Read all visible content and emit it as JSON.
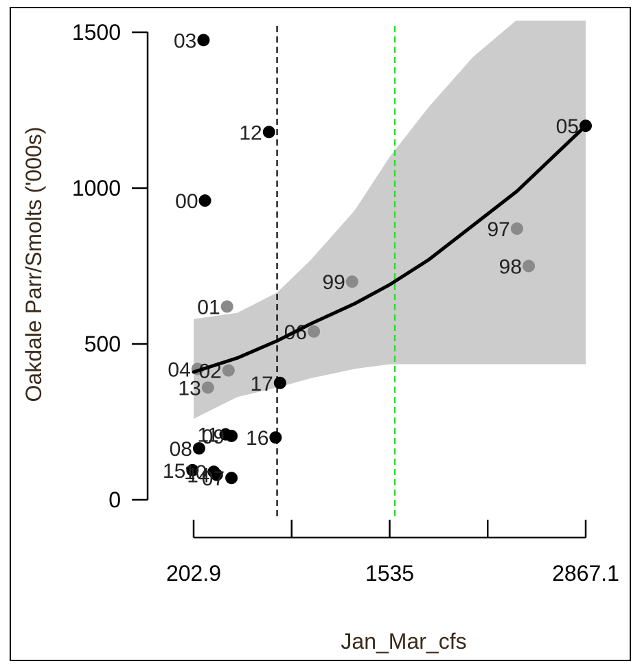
{
  "chart_data": {
    "type": "scatter",
    "title": "",
    "xlabel": "Jan_Mar_cfs",
    "ylabel": "Oakdale Parr/Smolts ('000s)",
    "xlim": [
      140,
      2900
    ],
    "ylim": [
      -60,
      1540
    ],
    "x_ticks": [
      202.9,
      869,
      1535,
      2201,
      2867.1
    ],
    "x_tick_labels": [
      "202.9",
      "",
      "1535",
      "",
      "2867.1"
    ],
    "y_ticks": [
      0,
      500,
      1000,
      1500
    ],
    "y_tick_labels": [
      "0",
      "500",
      "1000",
      "1500"
    ],
    "grid": false,
    "vlines": [
      {
        "x": 770,
        "color": "#000000",
        "style": "dashed"
      },
      {
        "x": 1570,
        "color": "#22dd22",
        "style": "dashed"
      }
    ],
    "fit_curve": [
      {
        "x": 202.9,
        "y": 410,
        "lo": 260,
        "hi": 580
      },
      {
        "x": 500,
        "y": 455,
        "lo": 330,
        "hi": 600
      },
      {
        "x": 770,
        "y": 510,
        "lo": 360,
        "hi": 665
      },
      {
        "x": 1000,
        "y": 565,
        "lo": 390,
        "hi": 770
      },
      {
        "x": 1300,
        "y": 630,
        "lo": 420,
        "hi": 930
      },
      {
        "x": 1535,
        "y": 690,
        "lo": 435,
        "hi": 1100
      },
      {
        "x": 1800,
        "y": 770,
        "lo": 435,
        "hi": 1260
      },
      {
        "x": 2100,
        "y": 880,
        "lo": 435,
        "hi": 1420
      },
      {
        "x": 2400,
        "y": 990,
        "lo": 435,
        "hi": 1540
      },
      {
        "x": 2867.1,
        "y": 1200,
        "lo": 435,
        "hi": 1540
      }
    ],
    "points": [
      {
        "label": "03",
        "x": 270,
        "y": 1475,
        "color": "#000000"
      },
      {
        "label": "12",
        "x": 715,
        "y": 1180,
        "color": "#000000"
      },
      {
        "label": "00",
        "x": 280,
        "y": 960,
        "color": "#000000"
      },
      {
        "label": "05",
        "x": 2867.1,
        "y": 1200,
        "color": "#000000"
      },
      {
        "label": "97",
        "x": 2400,
        "y": 870,
        "color": "#8a8a8a"
      },
      {
        "label": "98",
        "x": 2480,
        "y": 750,
        "color": "#8a8a8a"
      },
      {
        "label": "99",
        "x": 1280,
        "y": 700,
        "color": "#8a8a8a"
      },
      {
        "label": "01",
        "x": 430,
        "y": 620,
        "color": "#8a8a8a"
      },
      {
        "label": "06",
        "x": 1020,
        "y": 540,
        "color": "#8a8a8a"
      },
      {
        "label": "04",
        "x": 230,
        "y": 420,
        "color": "#8a8a8a"
      },
      {
        "label": "02",
        "x": 440,
        "y": 415,
        "color": "#8a8a8a"
      },
      {
        "label": "13",
        "x": 300,
        "y": 360,
        "color": "#8a8a8a"
      },
      {
        "label": "17",
        "x": 790,
        "y": 375,
        "color": "#000000"
      },
      {
        "label": "11",
        "x": 420,
        "y": 210,
        "color": "#000000"
      },
      {
        "label": "09",
        "x": 460,
        "y": 205,
        "color": "#000000"
      },
      {
        "label": "16",
        "x": 760,
        "y": 200,
        "color": "#000000"
      },
      {
        "label": "08",
        "x": 240,
        "y": 165,
        "color": "#000000"
      },
      {
        "label": "15",
        "x": 195,
        "y": 95,
        "color": "#000000"
      },
      {
        "label": "10",
        "x": 340,
        "y": 90,
        "color": "#000000"
      },
      {
        "label": "14",
        "x": 360,
        "y": 80,
        "color": "#000000"
      },
      {
        "label": "07",
        "x": 460,
        "y": 70,
        "color": "#000000"
      }
    ]
  },
  "colors": {
    "ci_band": "#cccccc",
    "fit_line": "#000000",
    "point_dark": "#000000",
    "point_gray": "#8a8a8a"
  }
}
